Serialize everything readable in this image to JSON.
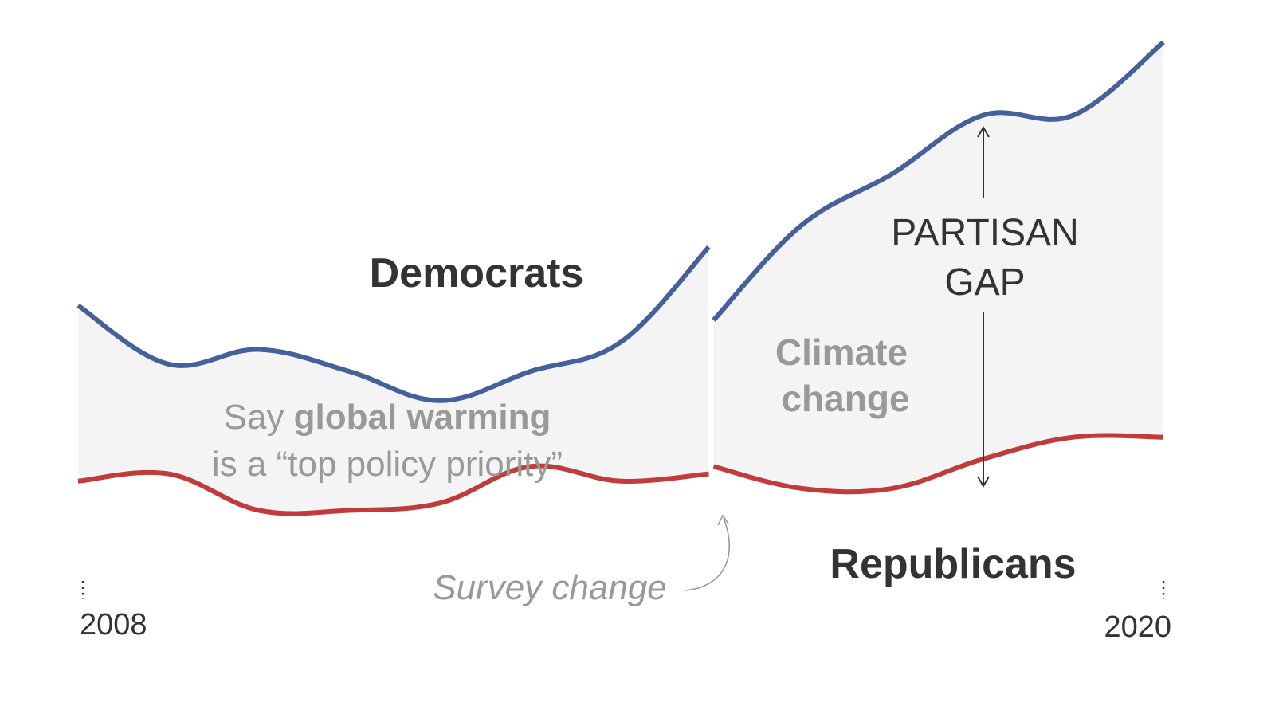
{
  "chart_data": {
    "type": "area",
    "x_range": [
      2008,
      2020
    ],
    "ylim": [
      0,
      100
    ],
    "tick_labels": [
      "2008",
      "2020"
    ],
    "colors": {
      "democrats": "#45609a",
      "republicans": "#c23b3b",
      "band": "#f4f4f4"
    },
    "annotations": {
      "democrats": "Democrats",
      "republicans": "Republicans",
      "band_pre_line1_prefix": "Say ",
      "band_pre_line1_bold": "global warming",
      "band_pre_line2": "is a “top policy priority”",
      "band_post_line1": "Climate",
      "band_post_line2": "change",
      "gap_line1": "PARTISAN",
      "gap_line2": "GAP",
      "survey_change": "Survey change"
    },
    "segments": [
      {
        "label": "global warming",
        "x": [
          2008.0,
          2009.0,
          2010.0,
          2011.0,
          2012.0,
          2013.0,
          2014.0,
          2015.0
        ],
        "democrats": [
          42,
          34,
          36,
          33,
          29,
          33,
          37,
          50
        ],
        "republicans": [
          18,
          19,
          14,
          14,
          15,
          20,
          18,
          19
        ]
      },
      {
        "label": "Climate change",
        "x": [
          2015.0,
          2016.0,
          2017.0,
          2018.0,
          2019.0,
          2020.0
        ],
        "democrats": [
          40,
          53,
          60,
          68,
          68,
          78
        ],
        "republicans": [
          20,
          17,
          17,
          21,
          24,
          24
        ]
      }
    ]
  }
}
